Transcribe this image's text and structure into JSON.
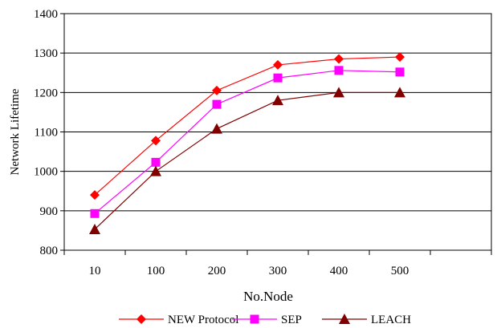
{
  "chart_data": {
    "type": "line",
    "title": "",
    "xlabel": "No.Node",
    "ylabel": "Network Lifetime",
    "categories": [
      "10",
      "100",
      "200",
      "300",
      "400",
      "500",
      ""
    ],
    "ylim": [
      800,
      1400
    ],
    "yticks": [
      "800",
      "900",
      "1000",
      "1100",
      "1200",
      "1300",
      "1400"
    ],
    "grid": "horizontal",
    "legend_position": "bottom",
    "series": [
      {
        "name": "NEW Protocol",
        "color": "#ff0000",
        "marker": "diamond",
        "values": [
          940,
          1078,
          1205,
          1270,
          1285,
          1290,
          null
        ]
      },
      {
        "name": "SEP",
        "color": "#ff00ff",
        "marker": "square",
        "values": [
          893,
          1023,
          1170,
          1237,
          1256,
          1252,
          null
        ]
      },
      {
        "name": "LEACH",
        "color": "#800000",
        "marker": "triangle",
        "values": [
          853,
          1000,
          1108,
          1180,
          1200,
          1200,
          null
        ]
      }
    ]
  }
}
